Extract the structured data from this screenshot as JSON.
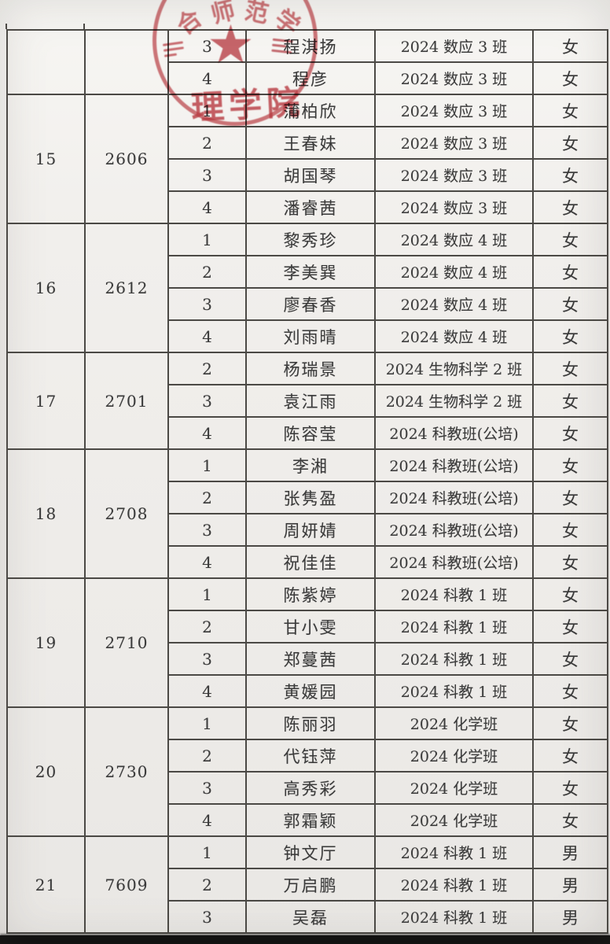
{
  "stamp": {
    "arc_chars": [
      "合",
      "师",
      "范",
      "学"
    ],
    "title": "理学院",
    "color": "#c2454c"
  },
  "colors": {
    "paper": "#f1efec",
    "table_border": "#4b4945",
    "ink": "#3a3a3a",
    "stamp_red": "#c2454c",
    "bottom_bar": "#0d0d0d"
  },
  "table": {
    "groups": [
      {
        "group_no": "",
        "room": "",
        "rows": [
          {
            "bed": "3",
            "name": "程淇扬",
            "class": "2024 数应 3 班",
            "gender": "女"
          },
          {
            "bed": "4",
            "name": "程彦",
            "class": "2024 数应 3 班",
            "gender": "女"
          }
        ]
      },
      {
        "group_no": "15",
        "room": "2606",
        "rows": [
          {
            "bed": "1",
            "name": "蒲柏欣",
            "class": "2024 数应 3 班",
            "gender": "女"
          },
          {
            "bed": "2",
            "name": "王春妹",
            "class": "2024 数应 3 班",
            "gender": "女"
          },
          {
            "bed": "3",
            "name": "胡国琴",
            "class": "2024 数应 3 班",
            "gender": "女"
          },
          {
            "bed": "4",
            "name": "潘睿茜",
            "class": "2024 数应 3 班",
            "gender": "女"
          }
        ]
      },
      {
        "group_no": "16",
        "room": "2612",
        "rows": [
          {
            "bed": "1",
            "name": "黎秀珍",
            "class": "2024 数应 4 班",
            "gender": "女"
          },
          {
            "bed": "2",
            "name": "李美巽",
            "class": "2024 数应 4 班",
            "gender": "女"
          },
          {
            "bed": "3",
            "name": "廖春香",
            "class": "2024 数应 4 班",
            "gender": "女"
          },
          {
            "bed": "4",
            "name": "刘雨晴",
            "class": "2024 数应 4 班",
            "gender": "女"
          }
        ]
      },
      {
        "group_no": "17",
        "room": "2701",
        "rows": [
          {
            "bed": "2",
            "name": "杨瑞景",
            "class": "2024 生物科学 2 班",
            "gender": "女"
          },
          {
            "bed": "3",
            "name": "袁江雨",
            "class": "2024 生物科学 2 班",
            "gender": "女"
          },
          {
            "bed": "4",
            "name": "陈容莹",
            "class": "2024 科教班(公培)",
            "gender": "女"
          }
        ]
      },
      {
        "group_no": "18",
        "room": "2708",
        "rows": [
          {
            "bed": "1",
            "name": "李湘",
            "class": "2024 科教班(公培)",
            "gender": "女"
          },
          {
            "bed": "2",
            "name": "张隽盈",
            "class": "2024 科教班(公培)",
            "gender": "女"
          },
          {
            "bed": "3",
            "name": "周妍婧",
            "class": "2024 科教班(公培)",
            "gender": "女"
          },
          {
            "bed": "4",
            "name": "祝佳佳",
            "class": "2024 科教班(公培)",
            "gender": "女"
          }
        ]
      },
      {
        "group_no": "19",
        "room": "2710",
        "rows": [
          {
            "bed": "1",
            "name": "陈紫婷",
            "class": "2024 科教 1 班",
            "gender": "女"
          },
          {
            "bed": "2",
            "name": "甘小雯",
            "class": "2024 科教 1 班",
            "gender": "女"
          },
          {
            "bed": "3",
            "name": "郑蔓茜",
            "class": "2024 科教 1 班",
            "gender": "女"
          },
          {
            "bed": "4",
            "name": "黄媛园",
            "class": "2024 科教 1 班",
            "gender": "女"
          }
        ]
      },
      {
        "group_no": "20",
        "room": "2730",
        "rows": [
          {
            "bed": "1",
            "name": "陈丽羽",
            "class": "2024 化学班",
            "gender": "女"
          },
          {
            "bed": "2",
            "name": "代钰萍",
            "class": "2024 化学班",
            "gender": "女"
          },
          {
            "bed": "3",
            "name": "高秀彩",
            "class": "2024 化学班",
            "gender": "女"
          },
          {
            "bed": "4",
            "name": "郭霜颖",
            "class": "2024 化学班",
            "gender": "女"
          }
        ]
      },
      {
        "group_no": "21",
        "room": "7609",
        "rows": [
          {
            "bed": "1",
            "name": "钟文厅",
            "class": "2024 科教 1 班",
            "gender": "男"
          },
          {
            "bed": "2",
            "name": "万启鹏",
            "class": "2024 科教 1 班",
            "gender": "男"
          },
          {
            "bed": "3",
            "name": "吴磊",
            "class": "2024 科教 1 班",
            "gender": "男"
          }
        ]
      }
    ]
  }
}
